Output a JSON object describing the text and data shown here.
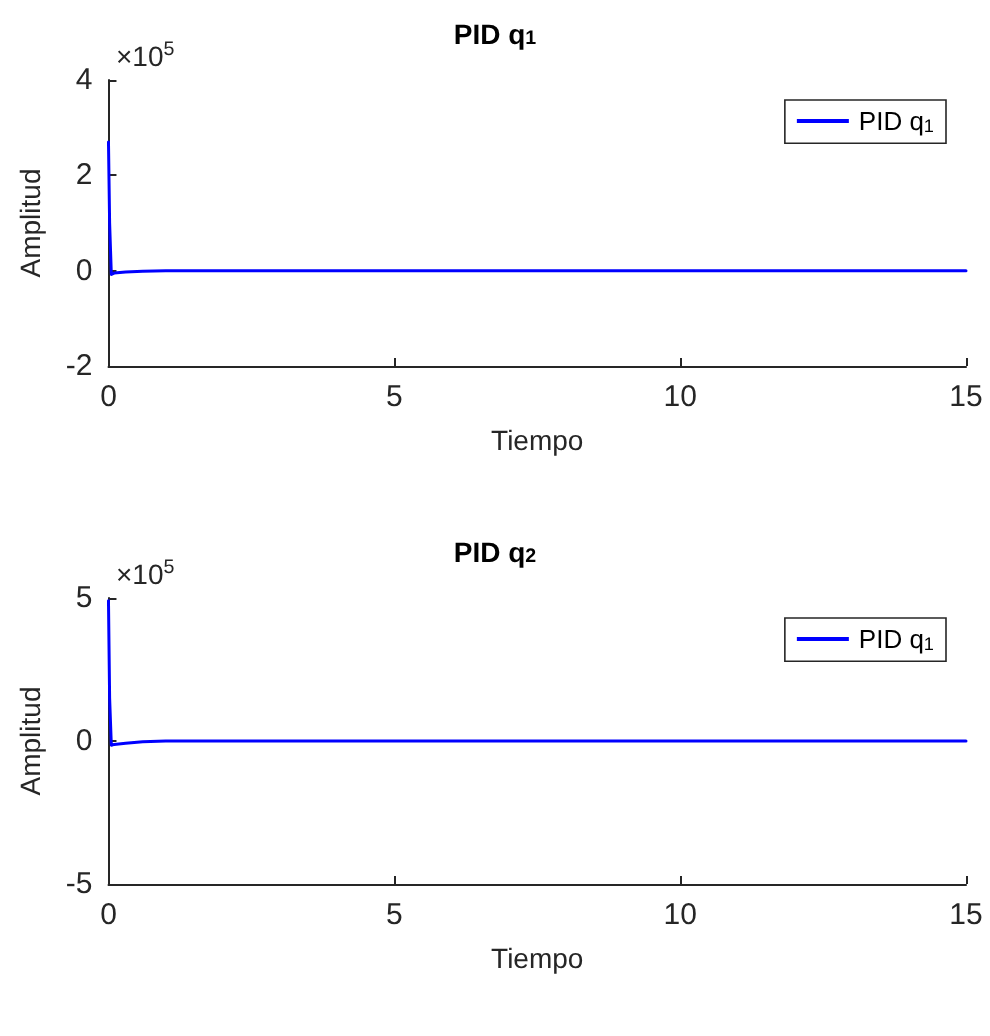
{
  "chart_data": [
    {
      "type": "line",
      "title": "PID q$_{1}$",
      "xlabel": "Tiempo",
      "ylabel": "Amplitud",
      "annotations": [
        "×10$^{5}$"
      ],
      "x": [
        0,
        0.02,
        0.05,
        0.1,
        0.3,
        0.6,
        1,
        2,
        5,
        10,
        15
      ],
      "series": [
        {
          "name": "PID q$_{1}$",
          "color": "#0000ff",
          "values": [
            2.7,
            1.0,
            -0.08,
            -0.05,
            -0.03,
            -0.01,
            0,
            0,
            0,
            0,
            0
          ]
        }
      ],
      "xlim": [
        0,
        15
      ],
      "xticks": [
        0,
        5,
        10,
        15
      ],
      "ylim": [
        -2,
        4
      ],
      "yticks": [
        -2,
        0,
        2,
        4
      ],
      "grid": false,
      "legend": "top right"
    },
    {
      "type": "line",
      "title": "PID q$_{2}$",
      "xlabel": "Tiempo",
      "ylabel": "Amplitud",
      "annotations": [
        "×10$^{5}$"
      ],
      "x": [
        0,
        0.02,
        0.05,
        0.1,
        0.3,
        0.6,
        1,
        2,
        5,
        10,
        15
      ],
      "series": [
        {
          "name": "PID q$_{1}$",
          "color": "#0000ff",
          "values": [
            4.9,
            1.5,
            -0.15,
            -0.12,
            -0.08,
            -0.03,
            0,
            0,
            0,
            0,
            0
          ]
        }
      ],
      "xlim": [
        0,
        15
      ],
      "xticks": [
        0,
        5,
        10,
        15
      ],
      "ylim": [
        -5,
        5
      ],
      "yticks": [
        -5,
        0,
        5
      ],
      "grid": false,
      "legend": "top right"
    }
  ]
}
